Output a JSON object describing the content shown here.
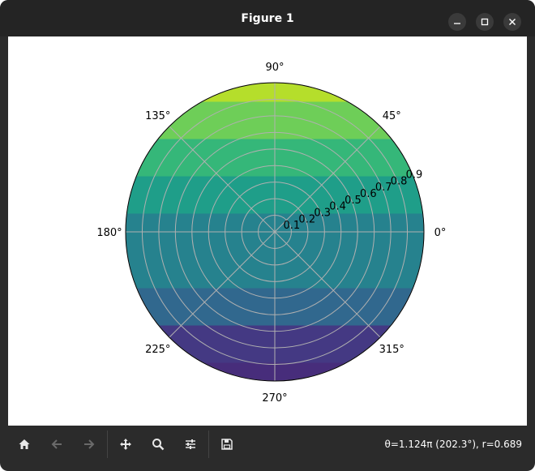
{
  "window": {
    "title": "Figure 1"
  },
  "chart_data": {
    "type": "heatmap",
    "projection": "polar",
    "angle_labels": [
      "0°",
      "45°",
      "90°",
      "135°",
      "180°",
      "225°",
      "270°",
      "315°"
    ],
    "angle_values_deg": [
      0,
      45,
      90,
      135,
      180,
      225,
      270,
      315
    ],
    "radial_tick_labels": [
      "0.1",
      "0.2",
      "0.3",
      "0.4",
      "0.5",
      "0.6",
      "0.7",
      "0.8",
      "0.9"
    ],
    "radial_tick_values": [
      0.1,
      0.2,
      0.3,
      0.4,
      0.5,
      0.6,
      0.7,
      0.8,
      0.9
    ],
    "rlim": [
      0,
      0.9
    ],
    "radial_label_angle_deg": 22.5,
    "grid": true,
    "colormap": "viridis",
    "bands": [
      {
        "y_from": -1.0,
        "y_to": -0.875,
        "color": "#472d7b"
      },
      {
        "y_from": -0.875,
        "y_to": -0.625,
        "color": "#443983"
      },
      {
        "y_from": -0.625,
        "y_to": -0.375,
        "color": "#31688e"
      },
      {
        "y_from": -0.375,
        "y_to": -0.125,
        "color": "#26828e"
      },
      {
        "y_from": -0.125,
        "y_to": 0.125,
        "color": "#26828e"
      },
      {
        "y_from": 0.125,
        "y_to": 0.375,
        "color": "#1f9e89"
      },
      {
        "y_from": 0.375,
        "y_to": 0.625,
        "color": "#35b779"
      },
      {
        "y_from": 0.625,
        "y_to": 0.875,
        "color": "#6ece58"
      },
      {
        "y_from": 0.875,
        "y_to": 1.0,
        "color": "#b5de2b"
      }
    ]
  },
  "toolbar": {
    "buttons": [
      {
        "name": "home-button",
        "icon": "home-icon",
        "enabled": true
      },
      {
        "name": "back-button",
        "icon": "arrow-left-icon",
        "enabled": false
      },
      {
        "name": "forward-button",
        "icon": "arrow-right-icon",
        "enabled": false
      },
      {
        "name": "pan-button",
        "icon": "move-icon",
        "enabled": true
      },
      {
        "name": "zoom-button",
        "icon": "magnifier-icon",
        "enabled": true
      },
      {
        "name": "configure-subplots-button",
        "icon": "sliders-icon",
        "enabled": true
      },
      {
        "name": "save-button",
        "icon": "floppy-disk-icon",
        "enabled": true
      }
    ],
    "status_text": "θ=1.124π (202.3°), r=0.689"
  }
}
